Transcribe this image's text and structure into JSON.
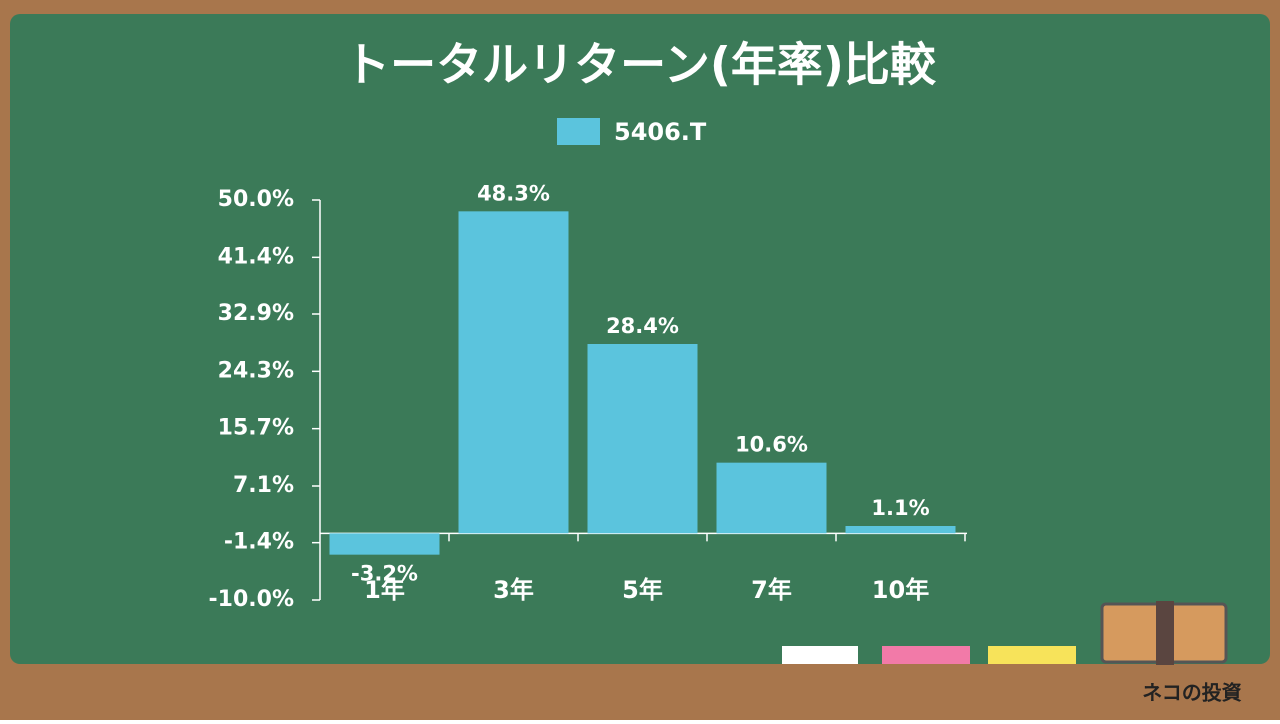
{
  "chart_data": {
    "type": "bar",
    "title": "トータルリターン(年率)比較",
    "categories": [
      "1年",
      "3年",
      "5年",
      "7年",
      "10年"
    ],
    "series": [
      {
        "name": "5406.T",
        "color": "#5bc4dd",
        "values": [
          -3.2,
          48.3,
          28.4,
          10.6,
          1.1
        ],
        "value_labels": [
          "-3.2%",
          "48.3%",
          "28.4%",
          "10.6%",
          "1.1%"
        ]
      }
    ],
    "ylim": [
      -10,
      50
    ],
    "yticks": [
      {
        "value": -10,
        "label": "-10.0%"
      },
      {
        "value": -1.4,
        "label": "-1.4%"
      },
      {
        "value": 7.1,
        "label": "7.1%"
      },
      {
        "value": 15.7,
        "label": "15.7%"
      },
      {
        "value": 24.3,
        "label": "24.3%"
      },
      {
        "value": 32.9,
        "label": "32.9%"
      },
      {
        "value": 41.4,
        "label": "41.4%"
      },
      {
        "value": 50,
        "label": "50.0%"
      }
    ],
    "grid": false,
    "legend": "top"
  },
  "branding": "ネコの投資"
}
